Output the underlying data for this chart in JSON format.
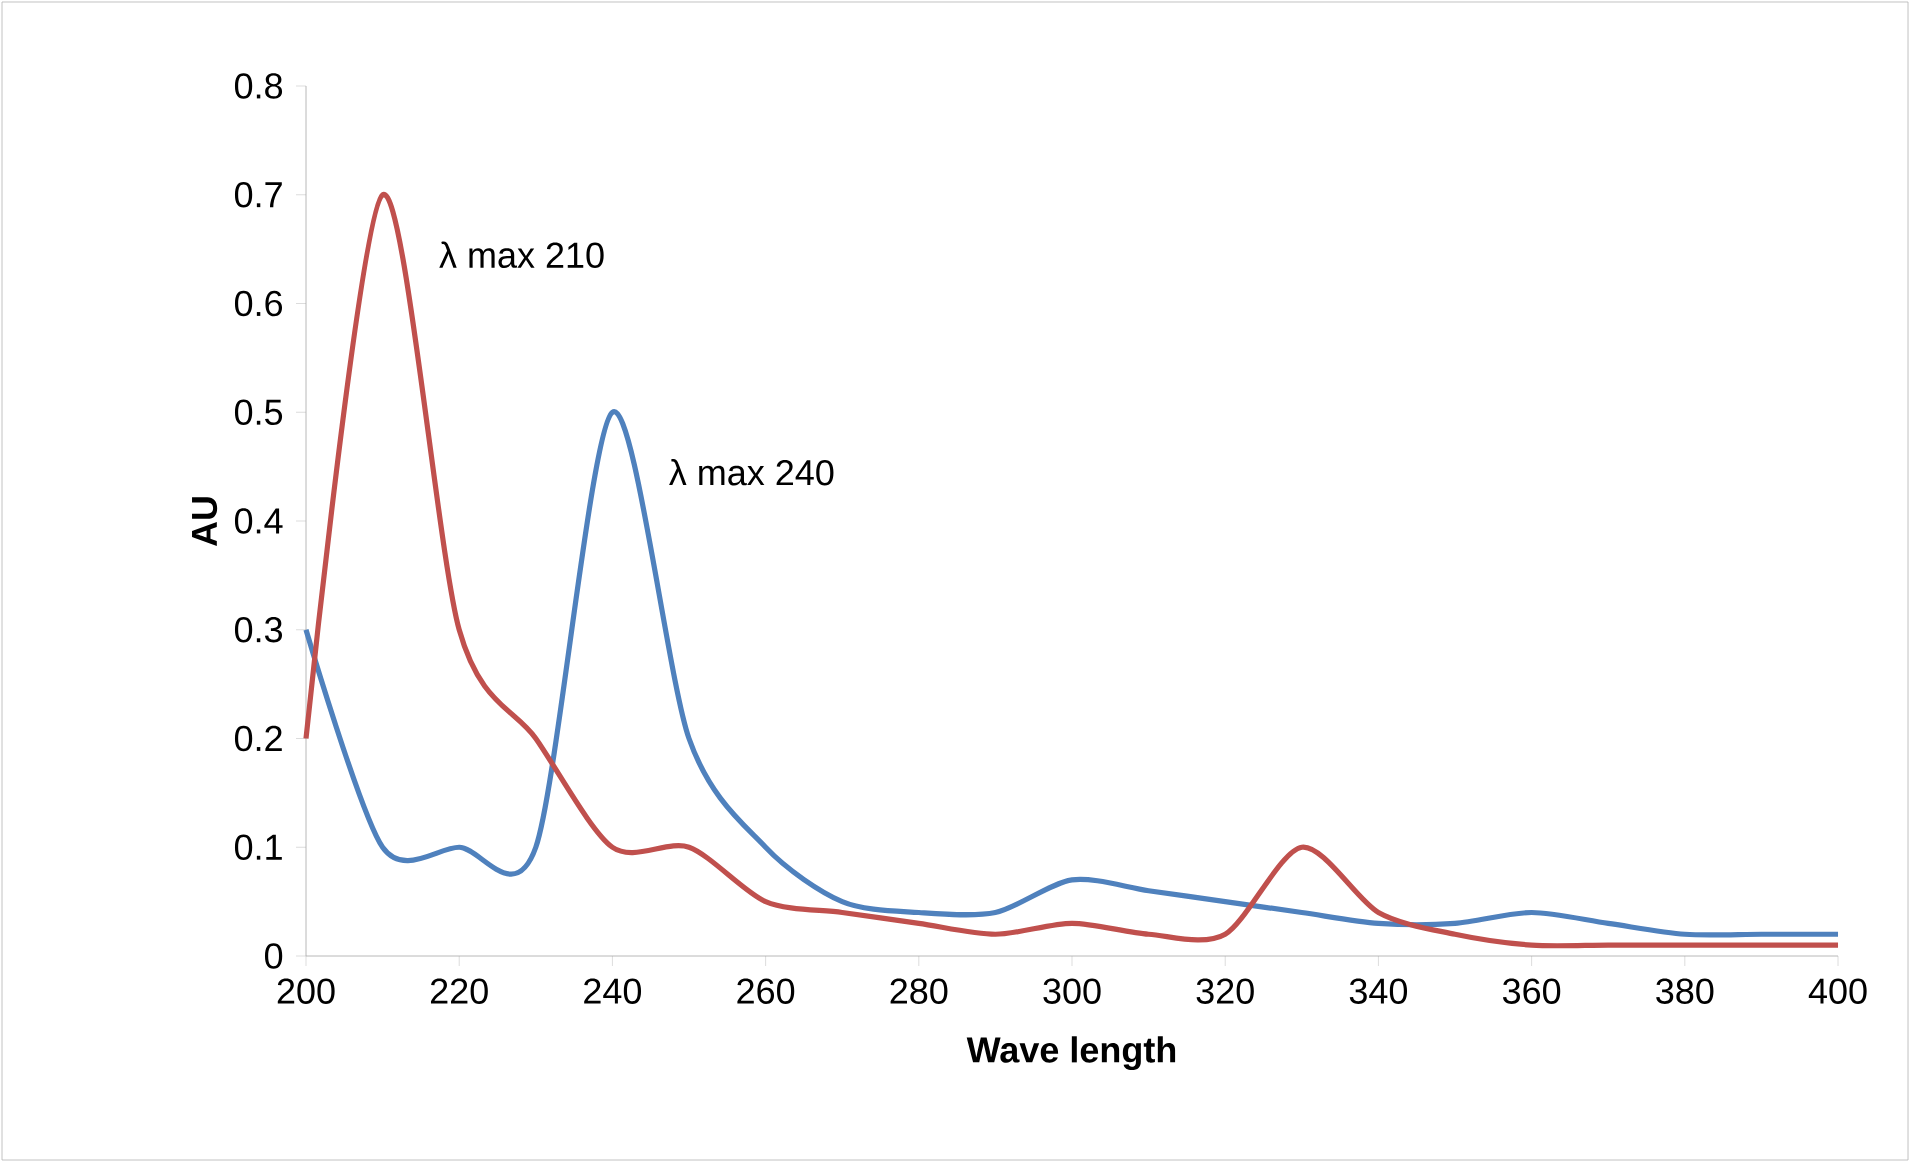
{
  "chart_data": {
    "type": "line",
    "xlabel": "Wave length",
    "ylabel": "AU",
    "x": [
      200,
      210,
      220,
      230,
      240,
      250,
      260,
      270,
      280,
      290,
      300,
      310,
      320,
      330,
      340,
      350,
      360,
      370,
      380,
      390,
      400
    ],
    "series": [
      {
        "color": "#4f81bd",
        "values": [
          0.3,
          0.1,
          0.1,
          0.1,
          0.5,
          0.2,
          0.1,
          0.05,
          0.04,
          0.04,
          0.07,
          0.06,
          0.05,
          0.04,
          0.03,
          0.03,
          0.04,
          0.03,
          0.02,
          0.02,
          0.02
        ]
      },
      {
        "color": "#c0504d",
        "values": [
          0.2,
          0.7,
          0.3,
          0.2,
          0.1,
          0.1,
          0.05,
          0.04,
          0.03,
          0.02,
          0.03,
          0.02,
          0.02,
          0.1,
          0.04,
          0.02,
          0.01,
          0.01,
          0.01,
          0.01,
          0.01
        ]
      }
    ],
    "xlim": [
      200,
      400
    ],
    "xticks": [
      200,
      220,
      240,
      260,
      280,
      300,
      320,
      340,
      360,
      380,
      400
    ],
    "ylim": [
      0,
      0.8
    ],
    "yticks": [
      0,
      0.1,
      0.2,
      0.3,
      0.4,
      0.5,
      0.6,
      0.7,
      0.8
    ],
    "grid": false,
    "marker": "none",
    "line_style": "solid",
    "annotations": [
      {
        "text": "λ max 210",
        "x": 210,
        "y": 0.7
      },
      {
        "text": "λ max 240",
        "x": 240,
        "y": 0.5
      }
    ]
  }
}
